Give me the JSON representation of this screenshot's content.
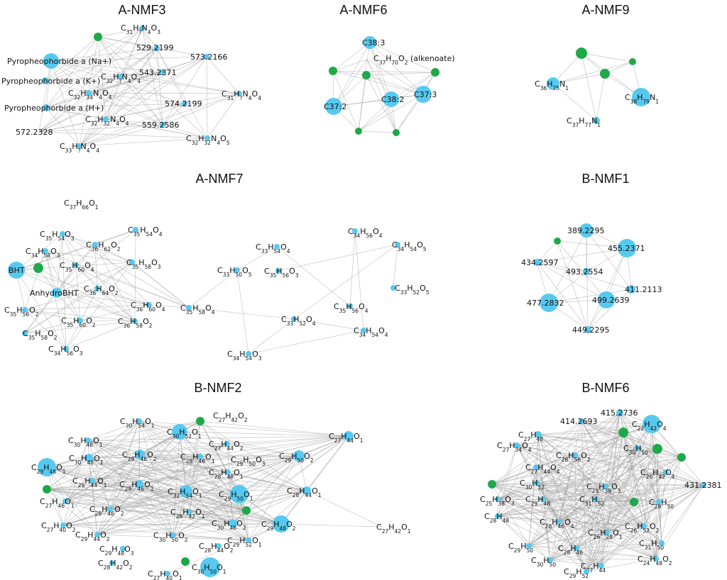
{
  "colors": {
    "node_blue": "#57c9f0",
    "node_green": "#1fa84a",
    "edge": "#9a9a9a"
  },
  "panels": [
    {
      "title": "A-NMF3",
      "nodes": [
        {
          "label": "",
          "color": "green"
        },
        {
          "label": "C_31H_?N_4O_3",
          "color": "blue"
        },
        {
          "label": "Pyropheophorbide a (Na+)",
          "color": "blue"
        },
        {
          "label": "529.2199",
          "color": "blue"
        },
        {
          "label": "573.2166",
          "color": "blue"
        },
        {
          "label": "Pyropheophorbide a (K+)",
          "color": "blue"
        },
        {
          "label": "C_32H_?N_4O_4",
          "color": "blue"
        },
        {
          "label": "543.2371",
          "color": "blue"
        },
        {
          "label": "C_32H_34N_4O_4",
          "color": "blue"
        },
        {
          "label": "C_31H_?N_4O_4",
          "color": "blue"
        },
        {
          "label": "Pyropheophorbide a (H+)",
          "color": "blue"
        },
        {
          "label": "C_32H_32N_4O_4",
          "color": "blue"
        },
        {
          "label": "574.2199",
          "color": "blue"
        },
        {
          "label": "572.2328",
          "color": "blue"
        },
        {
          "label": "559.2586",
          "color": "blue"
        },
        {
          "label": "C_32H_32N_4O_5",
          "color": "blue"
        },
        {
          "label": "C_33H_?N_4O_4",
          "color": "blue"
        }
      ]
    },
    {
      "title": "A-NMF6",
      "nodes": [
        {
          "label": "C38:3",
          "color": "blue"
        },
        {
          "label": "C_37H_70O_2 (alkenoate)",
          "color": "blue"
        },
        {
          "label": "",
          "color": "green"
        },
        {
          "label": "",
          "color": "green"
        },
        {
          "label": "C38:2",
          "color": "blue"
        },
        {
          "label": "C37:3",
          "color": "blue"
        },
        {
          "label": "C37:2",
          "color": "blue"
        },
        {
          "label": "",
          "color": "green"
        },
        {
          "label": "",
          "color": "green"
        },
        {
          "label": "",
          "color": "green"
        }
      ]
    },
    {
      "title": "A-NMF9",
      "nodes": [
        {
          "label": "",
          "color": "green"
        },
        {
          "label": "",
          "color": "green"
        },
        {
          "label": "",
          "color": "green"
        },
        {
          "label": "C_36H_75N_1",
          "color": "blue"
        },
        {
          "label": "C_38H_79N_1",
          "color": "blue"
        },
        {
          "label": "C_37H_77N_1",
          "color": "blue"
        }
      ]
    },
    {
      "title": "A-NMF7",
      "nodes": [
        {
          "label": "C_37H_66O_1",
          "color": "none"
        },
        {
          "label": "C_35H_54O_3",
          "color": "blue"
        },
        {
          "label": "C_35H_54O_4",
          "color": "blue"
        },
        {
          "label": "C_36H_62O_2",
          "color": "blue"
        },
        {
          "label": "C_34H_58O_3",
          "color": "blue"
        },
        {
          "label": "BHT",
          "color": "blue"
        },
        {
          "label": "",
          "color": "green"
        },
        {
          "label": "C_35H_60O_4",
          "color": "blue"
        },
        {
          "label": "C_35H_58O_3",
          "color": "blue"
        },
        {
          "label": "AnhydroBHT",
          "color": "blue"
        },
        {
          "label": "C_36H_64O_2",
          "color": "blue"
        },
        {
          "label": "C_36H_60O_4",
          "color": "blue"
        },
        {
          "label": "C_35H_56O_2",
          "color": "blue"
        },
        {
          "label": "C_35H_60O_2",
          "color": "blue"
        },
        {
          "label": "C_36H_58O_2",
          "color": "blue"
        },
        {
          "label": "C_35H_58O_2",
          "color": "blue"
        },
        {
          "label": "C_34H_56O_3",
          "color": "blue"
        },
        {
          "label": "C_35H_58O_4",
          "color": "blue"
        },
        {
          "label": "C_34H_56O_4",
          "color": "blue"
        },
        {
          "label": "C_33H_54O_4",
          "color": "blue"
        },
        {
          "label": "C_34H_54O_5",
          "color": "blue"
        },
        {
          "label": "C_33H_50O_5",
          "color": "blue"
        },
        {
          "label": "C_35H_56O_3",
          "color": "blue"
        },
        {
          "label": "C_33H_52O_5",
          "color": "blue"
        },
        {
          "label": "C_33H_52O_4",
          "color": "blue"
        },
        {
          "label": "C_35H_56O_4",
          "color": "blue"
        },
        {
          "label": "C_34H_54O_4",
          "color": "blue"
        },
        {
          "label": "C_34H_54O_3",
          "color": "blue"
        }
      ]
    },
    {
      "title": "B-NMF1",
      "nodes": [
        {
          "label": "389.2295",
          "color": "blue"
        },
        {
          "label": "",
          "color": "green"
        },
        {
          "label": "455.2371",
          "color": "blue"
        },
        {
          "label": "434.2597",
          "color": "blue"
        },
        {
          "label": "493.2554",
          "color": "blue"
        },
        {
          "label": "411.2113",
          "color": "blue"
        },
        {
          "label": "499.2639",
          "color": "blue"
        },
        {
          "label": "477.2832",
          "color": "blue"
        },
        {
          "label": "449.2295",
          "color": "blue"
        }
      ]
    },
    {
      "title": "B-NMF2",
      "nodes": [
        {
          "label": "C_30H_54O_1",
          "color": "blue"
        },
        {
          "label": "",
          "color": "green"
        },
        {
          "label": "C_27H_42O_2",
          "color": "none"
        },
        {
          "label": "C_30H_52O_1",
          "color": "blue"
        },
        {
          "label": "C_30H_46O_1",
          "color": "blue"
        },
        {
          "label": "C_27H_44O_2",
          "color": "blue"
        },
        {
          "label": "C_27H_44O_1",
          "color": "blue"
        },
        {
          "label": "C_30H_48O_1",
          "color": "blue"
        },
        {
          "label": "C_29H_46O_2",
          "color": "blue"
        },
        {
          "label": "C_28H_46O_1",
          "color": "blue"
        },
        {
          "label": "C_29H_50O_3",
          "color": "none"
        },
        {
          "label": "C_29H_50O_2",
          "color": "blue"
        },
        {
          "label": "C_29H_48O_1",
          "color": "blue"
        },
        {
          "label": "C_28H_48O_1",
          "color": "blue"
        },
        {
          "label": "C_29H_44O_1",
          "color": "blue"
        },
        {
          "label": "C_29H_46O_1",
          "color": "blue"
        },
        {
          "label": "",
          "color": "green"
        },
        {
          "label": "C_32H_54O_1",
          "color": "blue"
        },
        {
          "label": "C_29H_50O_1",
          "color": "blue"
        },
        {
          "label": "C_28H_44O_1",
          "color": "blue"
        },
        {
          "label": "C_27H_46O_1",
          "color": "blue"
        },
        {
          "label": "C_28H_46O_2",
          "color": "blue"
        },
        {
          "label": "C_28H_42O_1",
          "color": "blue"
        },
        {
          "label": "",
          "color": "green"
        },
        {
          "label": "C_27H_40O_2",
          "color": "blue"
        },
        {
          "label": "C_30H_48O_2",
          "color": "blue"
        },
        {
          "label": "C_29H_48O_2",
          "color": "blue"
        },
        {
          "label": "C_29H_44O_2",
          "color": "blue"
        },
        {
          "label": "C_30H_50O_2",
          "color": "blue"
        },
        {
          "label": "C_29H_52O_1",
          "color": "blue"
        },
        {
          "label": "C_27H_42O_1",
          "color": "blue"
        },
        {
          "label": "C_29H_48O_3",
          "color": "blue"
        },
        {
          "label": "C_28H_44O_2",
          "color": "blue"
        },
        {
          "label": "C_28H_42O_2",
          "color": "blue"
        },
        {
          "label": "",
          "color": "green"
        },
        {
          "label": "C_27H_40O_1",
          "color": "blue"
        },
        {
          "label": "C_30H_50O_1",
          "color": "blue"
        }
      ]
    },
    {
      "title": "B-NMF6",
      "nodes": [
        {
          "label": "415.2736",
          "color": "blue"
        },
        {
          "label": "414.2693",
          "color": "blue"
        },
        {
          "label": "C_22H_42O_4",
          "color": "blue"
        },
        {
          "label": "C_27H_48",
          "color": "blue"
        },
        {
          "label": "",
          "color": "green"
        },
        {
          "label": "C_27H_34O_4",
          "color": "blue"
        },
        {
          "label": "C_28H_56O_2",
          "color": "blue"
        },
        {
          "label": "C_30H_50",
          "color": "blue"
        },
        {
          "label": "",
          "color": "green"
        },
        {
          "label": "",
          "color": "green"
        },
        {
          "label": "C_27H_44O_4",
          "color": "blue"
        },
        {
          "label": "C_26H_42O_4",
          "color": "blue"
        },
        {
          "label": "C_30H_52",
          "color": "blue"
        },
        {
          "label": "C_29H_38O_3",
          "color": "blue"
        },
        {
          "label": "",
          "color": "green"
        },
        {
          "label": "431.2381",
          "color": "blue"
        },
        {
          "label": "C_25H_38O_3",
          "color": "blue"
        },
        {
          "label": "C_29H_48",
          "color": "blue"
        },
        {
          "label": "C_31H_52",
          "color": "blue"
        },
        {
          "label": "",
          "color": "green"
        },
        {
          "label": "C_28H_50",
          "color": "blue"
        },
        {
          "label": "C_28H_48",
          "color": "blue"
        },
        {
          "label": "C_28H_46O_4",
          "color": "blue"
        },
        {
          "label": "C_26H_28O_1",
          "color": "blue"
        },
        {
          "label": "C_26H_52O_2",
          "color": "blue"
        },
        {
          "label": "C_29H_50",
          "color": "blue"
        },
        {
          "label": "C_28H_46",
          "color": "blue"
        },
        {
          "label": "C_31H_50",
          "color": "blue"
        },
        {
          "label": "C_30H_50",
          "color": "blue"
        },
        {
          "label": "C_27H_44",
          "color": "blue"
        },
        {
          "label": "C_24H_48O_2",
          "color": "blue"
        },
        {
          "label": "C_29H_52",
          "color": "blue"
        }
      ]
    }
  ]
}
